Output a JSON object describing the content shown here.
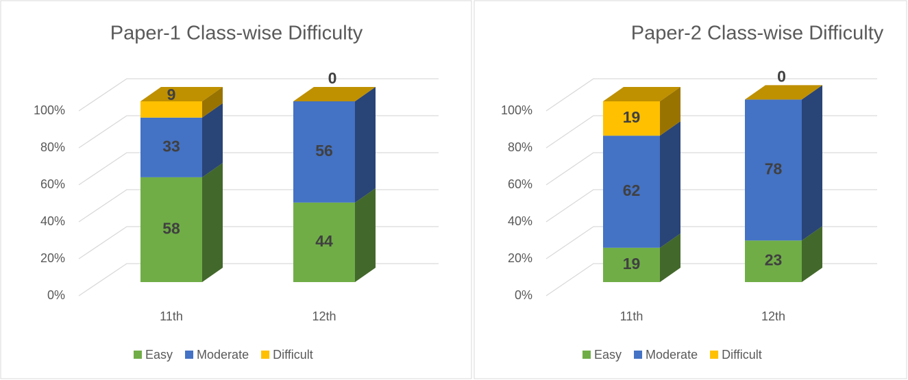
{
  "chart_data": [
    {
      "type": "bar",
      "stacked": true,
      "title": "Paper-1 Class-wise Difficulty",
      "categories": [
        "11th",
        "12th"
      ],
      "series": [
        {
          "name": "Easy",
          "color": "#70ad47",
          "values": [
            58,
            44
          ]
        },
        {
          "name": "Moderate",
          "color": "#4472c4",
          "values": [
            33,
            56
          ]
        },
        {
          "name": "Difficult",
          "color": "#ffc000",
          "values": [
            9,
            0
          ]
        }
      ],
      "ylim": [
        0,
        100
      ],
      "yticks": [
        {
          "value": 0,
          "label": "0%"
        },
        {
          "value": 20,
          "label": "20%"
        },
        {
          "value": 40,
          "label": "40%"
        },
        {
          "value": 60,
          "label": "60%"
        },
        {
          "value": 80,
          "label": "80%"
        },
        {
          "value": 100,
          "label": "100%"
        }
      ],
      "grid": true,
      "legend": "bottom"
    },
    {
      "type": "bar",
      "stacked": true,
      "title": "Paper-2 Class-wise Difficulty",
      "categories": [
        "11th",
        "12th"
      ],
      "series": [
        {
          "name": "Easy",
          "color": "#70ad47",
          "values": [
            19,
            23
          ]
        },
        {
          "name": "Moderate",
          "color": "#4472c4",
          "values": [
            62,
            78
          ]
        },
        {
          "name": "Difficult",
          "color": "#ffc000",
          "values": [
            19,
            0
          ]
        }
      ],
      "ylim": [
        0,
        100
      ],
      "yticks": [
        {
          "value": 0,
          "label": "0%"
        },
        {
          "value": 20,
          "label": "20%"
        },
        {
          "value": 40,
          "label": "40%"
        },
        {
          "value": 60,
          "label": "60%"
        },
        {
          "value": 80,
          "label": "80%"
        },
        {
          "value": 100,
          "label": "100%"
        }
      ],
      "grid": true,
      "legend": "bottom"
    }
  ]
}
